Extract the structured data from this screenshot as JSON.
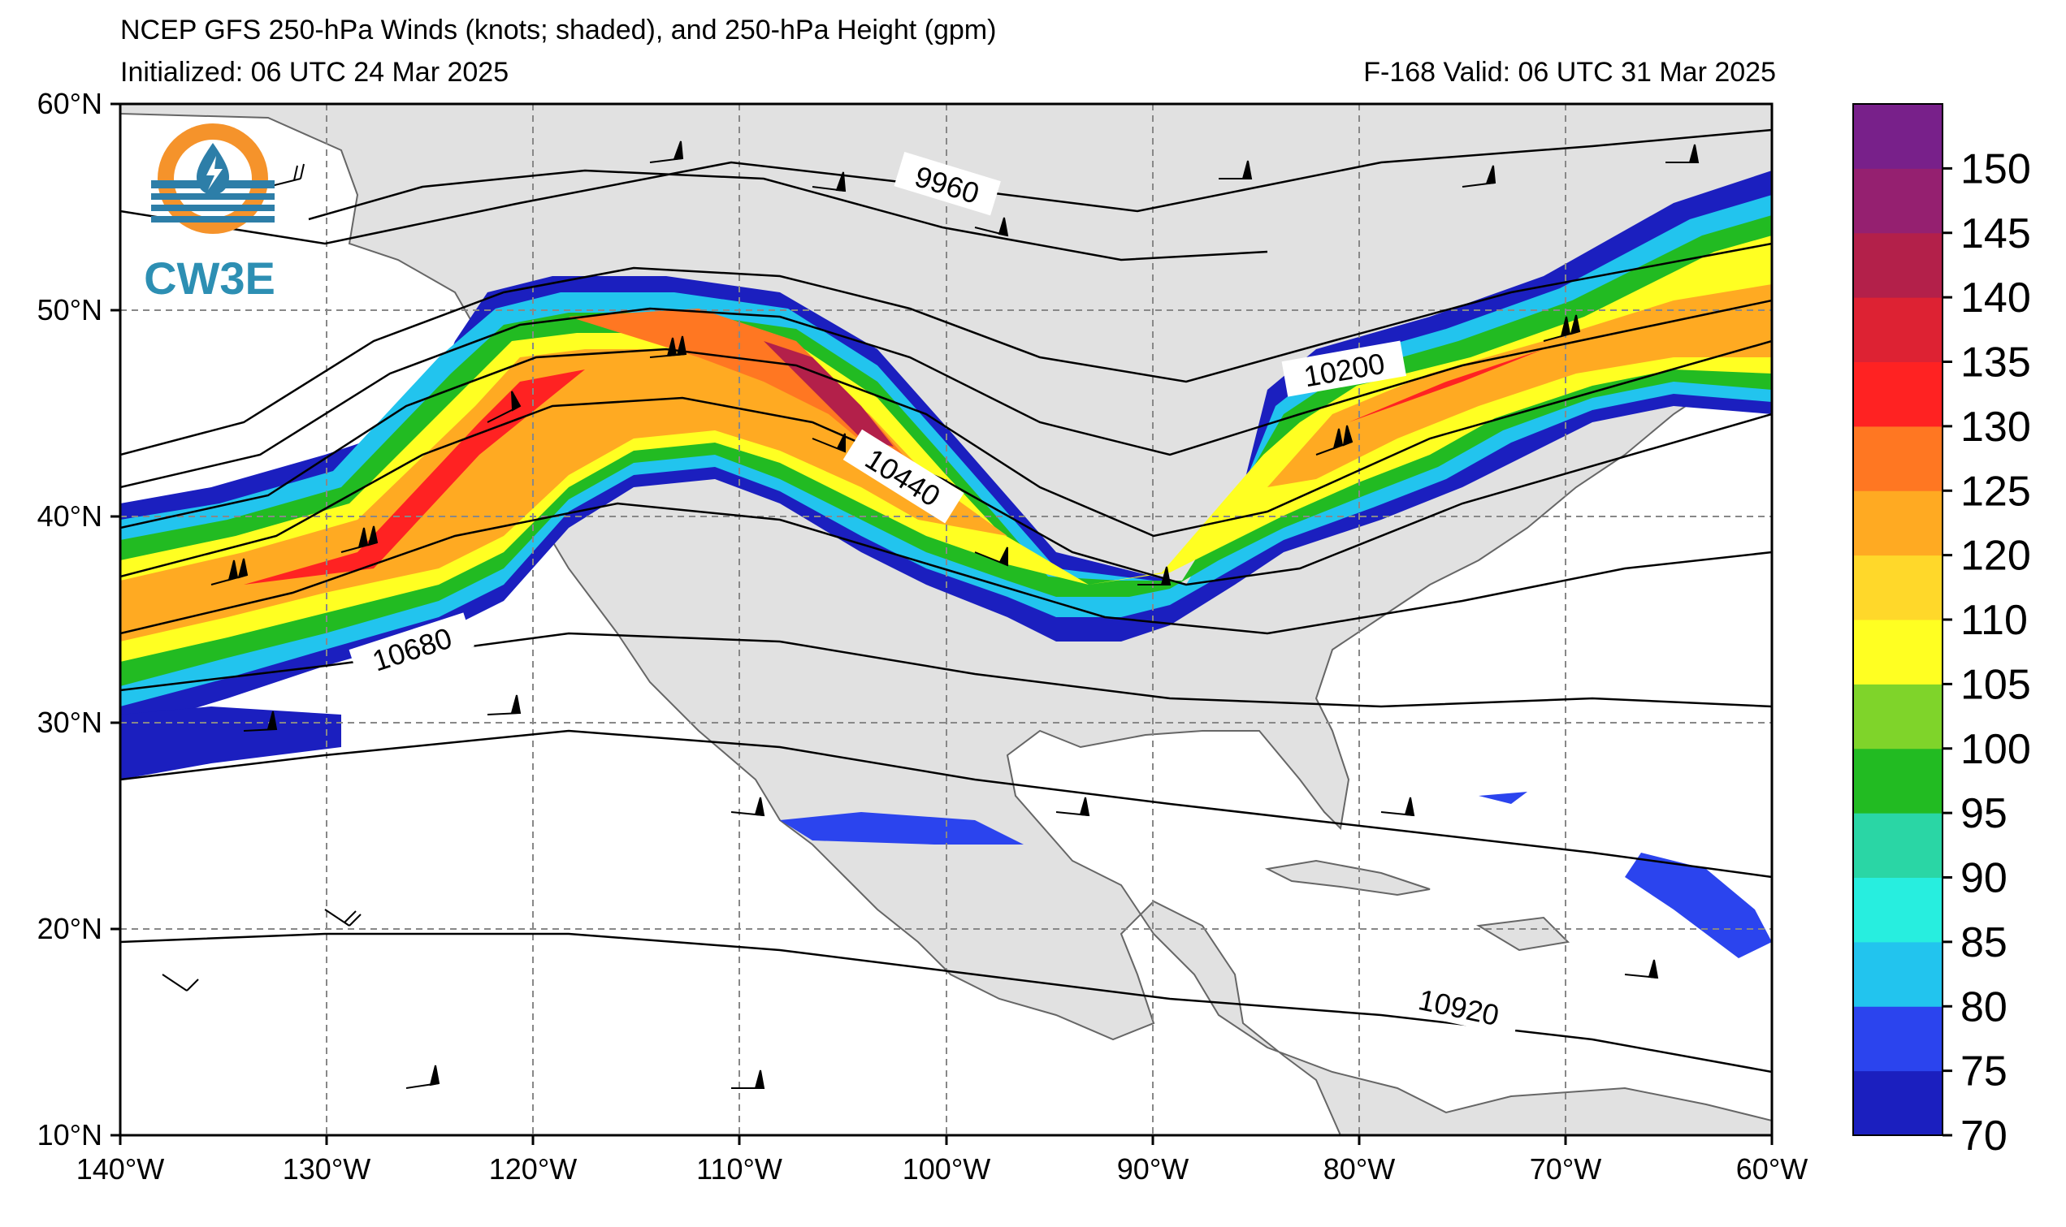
{
  "header": {
    "title": "NCEP GFS 250-hPa Winds (knots; shaded), and 250-hPa Height (gpm)",
    "initialized": "Initialized: 06 UTC 24 Mar 2025",
    "valid": "F-168  Valid: 06 UTC 31 Mar 2025"
  },
  "logo": {
    "text": "CW3E"
  },
  "map": {
    "lon_range": [
      -140,
      -60
    ],
    "lat_range": [
      10,
      60
    ],
    "lon_labels": [
      "140°W",
      "130°W",
      "120°W",
      "110°W",
      "100°W",
      "90°W",
      "80°W",
      "70°W",
      "60°W"
    ],
    "lat_labels": [
      "60°N",
      "50°N",
      "40°N",
      "30°N",
      "20°N",
      "10°N"
    ],
    "contour_labels": [
      "9960",
      "10200",
      "10440",
      "10680",
      "10920"
    ]
  },
  "colorbar": {
    "ticks": [
      "150",
      "145",
      "140",
      "135",
      "130",
      "125",
      "120",
      "110",
      "105",
      "100",
      "95",
      "90",
      "85",
      "80",
      "75",
      "70"
    ],
    "colors": [
      "#1b1fbf",
      "#2b44ee",
      "#22c4ee",
      "#27eedf",
      "#2ad6a5",
      "#22bb22",
      "#7fd42a",
      "#ffff22",
      "#ffd82a",
      "#ffaa22",
      "#ff7722",
      "#ff2222",
      "#dd2233",
      "#b3204a",
      "#952070",
      "#78208a"
    ]
  }
}
